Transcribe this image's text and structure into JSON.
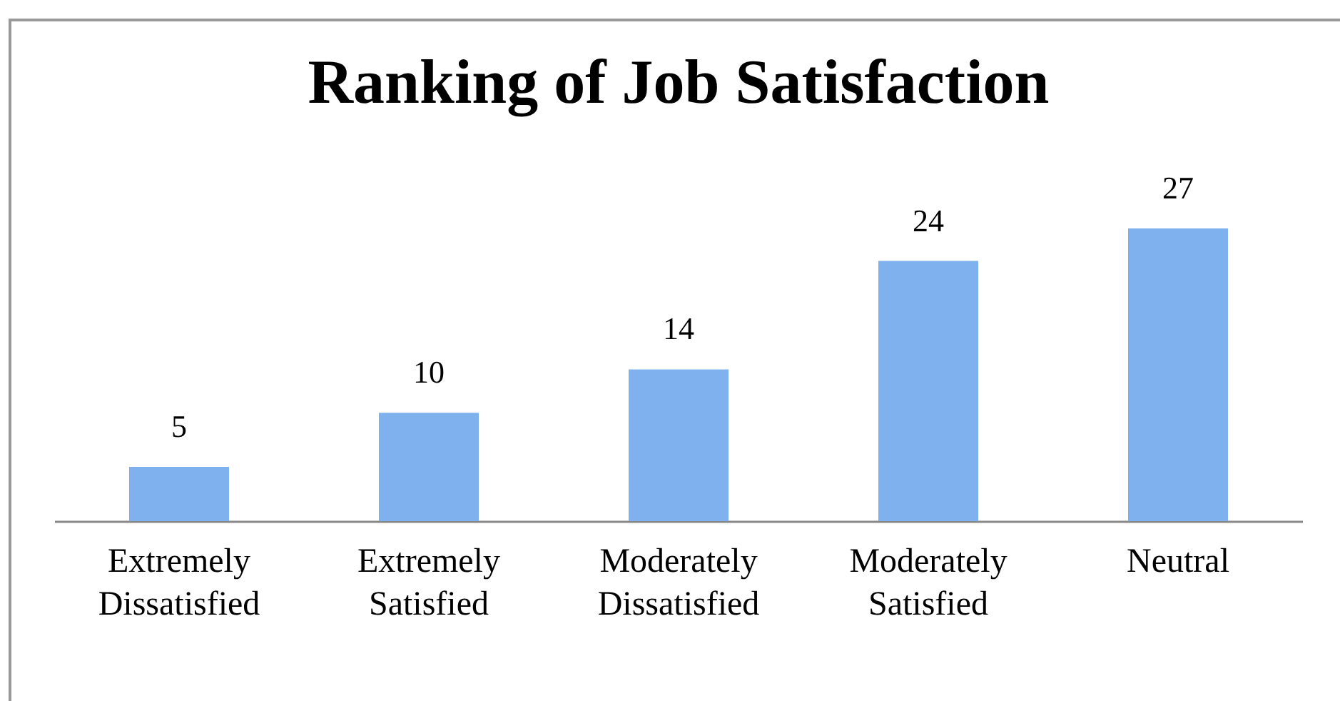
{
  "chart_data": {
    "type": "bar",
    "title": "Ranking of Job Satisfaction",
    "categories": [
      "Extremely Dissatisfied",
      "Extremely Satisfied",
      "Moderately Dissatisfied",
      "Moderately Satisfied",
      "Neutral"
    ],
    "values": [
      5,
      10,
      14,
      24,
      27
    ],
    "color": "#7eb1ee",
    "data_labels": true,
    "grid": false
  }
}
